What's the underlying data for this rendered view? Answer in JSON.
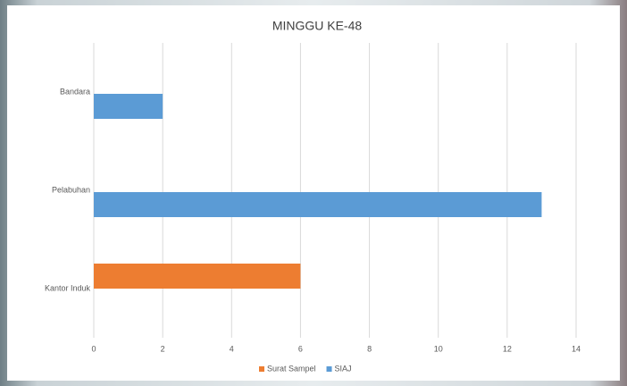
{
  "chart_data": {
    "type": "bar",
    "orientation": "horizontal",
    "title": "MINGGU KE-48",
    "categories": [
      "Bandara",
      "Pelabuhan",
      "Kantor Induk"
    ],
    "series": [
      {
        "name": "Surat Sampel",
        "color": "#ed7d31",
        "values": [
          null,
          null,
          6
        ]
      },
      {
        "name": "SIAJ",
        "color": "#5b9bd5",
        "values": [
          2,
          13,
          null
        ]
      }
    ],
    "xlim": [
      0,
      14
    ],
    "xticks": [
      0,
      2,
      4,
      6,
      8,
      10,
      12,
      14
    ],
    "grid": true,
    "legend": "bottom"
  }
}
